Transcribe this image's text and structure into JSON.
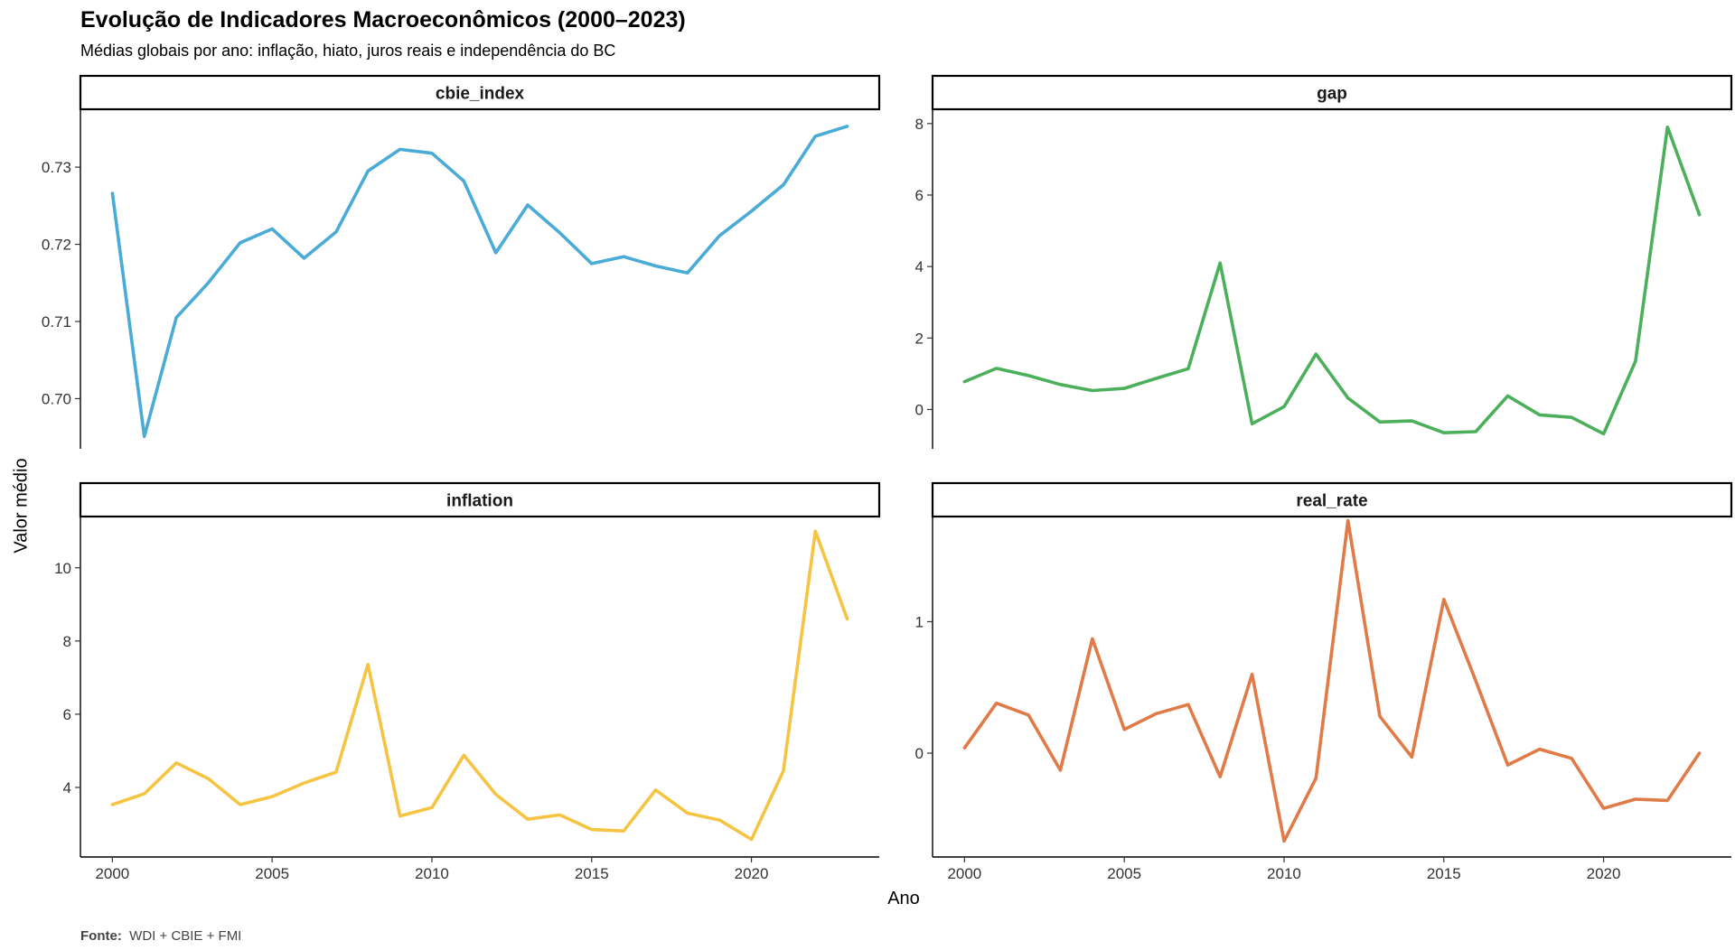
{
  "title": "Evolução de Indicadores Macroeconômicos (2000–2023)",
  "subtitle": "Médias globais por ano: inflação, hiato, juros reais e independência do BC",
  "caption": {
    "label": "Fonte:",
    "text": "WDI + CBIE + FMI"
  },
  "chart_data": {
    "type": "line",
    "xlabel": "Ano",
    "ylabel": "Valor médio",
    "grid": false,
    "x": [
      2000,
      2001,
      2002,
      2003,
      2004,
      2005,
      2006,
      2007,
      2008,
      2009,
      2010,
      2011,
      2012,
      2013,
      2014,
      2015,
      2016,
      2017,
      2018,
      2019,
      2020,
      2021,
      2022,
      2023
    ],
    "xticks": [
      2000,
      2005,
      2010,
      2015,
      2020
    ],
    "xlim": [
      1999,
      2024
    ],
    "panels": [
      {
        "name": "cbie_index",
        "color": "#4AABD6",
        "ylim": [
          0.6935,
          0.7375
        ],
        "yticks": [
          0.7,
          0.71,
          0.72,
          0.73
        ],
        "ytick_labels": [
          "0.70",
          "0.71",
          "0.72",
          "0.73"
        ],
        "values": [
          0.7266,
          0.6951,
          0.7105,
          0.715,
          0.7202,
          0.722,
          0.7182,
          0.7216,
          0.7295,
          0.7323,
          0.7318,
          0.7282,
          0.7189,
          0.7251,
          0.7215,
          0.7175,
          0.7184,
          0.7172,
          0.7163,
          0.7211,
          0.7243,
          0.7277,
          0.734,
          0.7353
        ]
      },
      {
        "name": "gap",
        "color": "#4CAF5C",
        "ylim": [
          -1.1,
          8.4
        ],
        "yticks": [
          0,
          2,
          4,
          6,
          8
        ],
        "ytick_labels": [
          "0",
          "2",
          "4",
          "6",
          "8"
        ],
        "values": [
          0.78,
          1.15,
          0.95,
          0.7,
          0.53,
          0.59,
          0.87,
          1.14,
          4.1,
          -0.4,
          0.08,
          1.55,
          0.32,
          -0.35,
          -0.32,
          -0.65,
          -0.62,
          0.38,
          -0.15,
          -0.22,
          -0.68,
          1.35,
          7.9,
          5.45
        ]
      },
      {
        "name": "inflation",
        "color": "#F5C443",
        "ylim": [
          2.1,
          11.4
        ],
        "yticks": [
          4,
          6,
          8,
          10
        ],
        "ytick_labels": [
          "4",
          "6",
          "8",
          "10"
        ],
        "values": [
          3.53,
          3.83,
          4.67,
          4.24,
          3.53,
          3.75,
          4.12,
          4.42,
          7.36,
          3.22,
          3.45,
          4.88,
          3.81,
          3.13,
          3.25,
          2.85,
          2.81,
          3.93,
          3.3,
          3.11,
          2.58,
          4.45,
          11.0,
          8.6
        ]
      },
      {
        "name": "real_rate",
        "color": "#E07A47",
        "ylim": [
          -0.79,
          1.8
        ],
        "yticks": [
          0,
          1
        ],
        "ytick_labels": [
          "0",
          "1"
        ],
        "values": [
          0.04,
          0.38,
          0.29,
          -0.13,
          0.87,
          0.18,
          0.3,
          0.37,
          -0.18,
          0.6,
          -0.67,
          -0.19,
          1.77,
          0.28,
          -0.03,
          1.17,
          0.55,
          -0.09,
          0.03,
          -0.04,
          -0.42,
          -0.35,
          -0.36,
          0.0
        ]
      }
    ]
  }
}
